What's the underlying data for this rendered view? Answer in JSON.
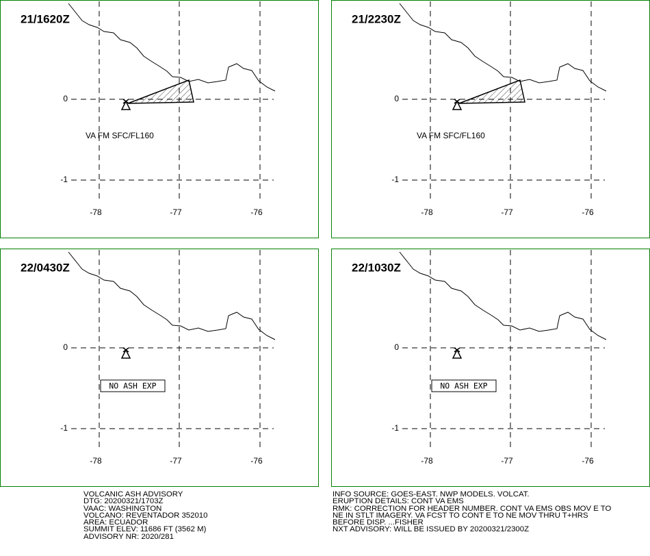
{
  "panels": [
    {
      "title": "21/1620Z",
      "note": "VA FM SFC/FL160"
    },
    {
      "title": "21/2230Z",
      "note": "VA FM SFC/FL160"
    },
    {
      "title": "22/0430Z",
      "boxed_note": "NO ASH EXP"
    },
    {
      "title": "22/1030Z",
      "boxed_note": "NO ASH EXP"
    }
  ],
  "lat_labels": [
    "0",
    "-1"
  ],
  "lon_labels": [
    "-78",
    "-77",
    "-76"
  ],
  "advisory_left": [
    "VOLCANIC ASH ADVISORY",
    "DTG: 20200321/1703Z",
    "VAAC: WASHINGTON",
    "VOLCANO: REVENTADOR 352010",
    "AREA: ECUADOR",
    "SUMMIT ELEV: 11686 FT (3562 M)",
    "ADVISORY NR: 2020/281"
  ],
  "advisory_right": [
    "INFO SOURCE: GOES-EAST. NWP MODELS. VOLCAT.",
    "ERUPTION DETAILS: CONT VA EMS",
    "RMK: CORRECTION FOR HEADER NUMBER. CONT VA EMS OBS MOV E TO",
    "NE IN STLT IMAGERY. VA FCST TO CONT E TO NE MOV THRU T+HRS",
    "BEFORE DISP. ...FISHER",
    "NXT ADVISORY: WILL BE ISSUED BY 20200321/2300Z"
  ]
}
